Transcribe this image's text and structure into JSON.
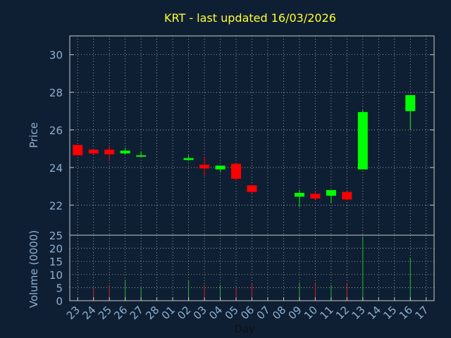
{
  "chart_data": [
    {
      "type": "candlestick",
      "title": "KRT - last updated 16/03/2026",
      "ylabel": "Price",
      "ylim": [
        20.4,
        31.0
      ],
      "yticks": [
        "22",
        "24",
        "26",
        "28",
        "30"
      ],
      "grid": true,
      "x": [
        "23",
        "24",
        "25",
        "26",
        "27",
        "28",
        "01",
        "02",
        "03",
        "04",
        "05",
        "06",
        "07",
        "08",
        "09",
        "10",
        "11",
        "12",
        "13",
        "14",
        "15",
        "16",
        "17"
      ],
      "candles": [
        {
          "day": "23",
          "open": 25.2,
          "close": 24.65,
          "high": 25.2,
          "low": 24.65
        },
        {
          "day": "24",
          "open": 24.95,
          "close": 24.75,
          "high": 25.0,
          "low": 24.7
        },
        {
          "day": "25",
          "open": 24.95,
          "close": 24.7,
          "high": 25.2,
          "low": 24.35
        },
        {
          "day": "26",
          "open": 24.75,
          "close": 24.9,
          "high": 25.05,
          "low": 24.7
        },
        {
          "day": "27",
          "open": 24.6,
          "close": 24.65,
          "high": 24.85,
          "low": 24.55
        },
        {
          "day": "02",
          "open": 24.4,
          "close": 24.5,
          "high": 24.65,
          "low": 24.35
        },
        {
          "day": "03",
          "open": 24.15,
          "close": 23.95,
          "high": 24.6,
          "low": 23.55
        },
        {
          "day": "04",
          "open": 23.9,
          "close": 24.1,
          "high": 24.1,
          "low": 23.75
        },
        {
          "day": "05",
          "open": 24.2,
          "close": 23.4,
          "high": 24.25,
          "low": 23.3
        },
        {
          "day": "06",
          "open": 23.05,
          "close": 22.7,
          "high": 23.05,
          "low": 22.6
        },
        {
          "day": "09",
          "open": 22.45,
          "close": 22.65,
          "high": 22.8,
          "low": 21.9
        },
        {
          "day": "10",
          "open": 22.6,
          "close": 22.35,
          "high": 22.75,
          "low": 22.3
        },
        {
          "day": "11",
          "open": 22.5,
          "close": 22.8,
          "high": 22.8,
          "low": 22.1
        },
        {
          "day": "12",
          "open": 22.7,
          "close": 22.3,
          "high": 22.7,
          "low": 22.25
        },
        {
          "day": "13",
          "open": 23.9,
          "close": 26.95,
          "high": 27.05,
          "low": 23.9
        },
        {
          "day": "16",
          "open": 27.0,
          "close": 27.85,
          "high": 27.85,
          "low": 26.0
        }
      ]
    },
    {
      "type": "bar",
      "ylabel": "Volume (0000)",
      "xlabel": "Day",
      "ylim": [
        0,
        25
      ],
      "yticks": [
        "0",
        "5",
        "10",
        "15",
        "20",
        "25"
      ],
      "grid": true,
      "volumes": [
        {
          "day": "24",
          "value": 5,
          "color": "red"
        },
        {
          "day": "25",
          "value": 6,
          "color": "red"
        },
        {
          "day": "26",
          "value": 8,
          "color": "green"
        },
        {
          "day": "27",
          "value": 5,
          "color": "green"
        },
        {
          "day": "02",
          "value": 7.5,
          "color": "green"
        },
        {
          "day": "03",
          "value": 6,
          "color": "red"
        },
        {
          "day": "04",
          "value": 6,
          "color": "green"
        },
        {
          "day": "05",
          "value": 5,
          "color": "red"
        },
        {
          "day": "06",
          "value": 6.5,
          "color": "red"
        },
        {
          "day": "09",
          "value": 7,
          "color": "green"
        },
        {
          "day": "10",
          "value": 7,
          "color": "red"
        },
        {
          "day": "11",
          "value": 6,
          "color": "green"
        },
        {
          "day": "12",
          "value": 6.5,
          "color": "red"
        },
        {
          "day": "13",
          "value": 24.5,
          "color": "green"
        },
        {
          "day": "16",
          "value": 16.5,
          "color": "green"
        }
      ]
    }
  ],
  "colors": {
    "background": "#0f1f33",
    "title": "#ffff33",
    "axis_text": "#8fb0cf",
    "frame": "#c8c8c8",
    "up": "#00ff00",
    "down": "#ff0000",
    "volume_up": "#22bb22",
    "volume_down": "#cc2222"
  }
}
